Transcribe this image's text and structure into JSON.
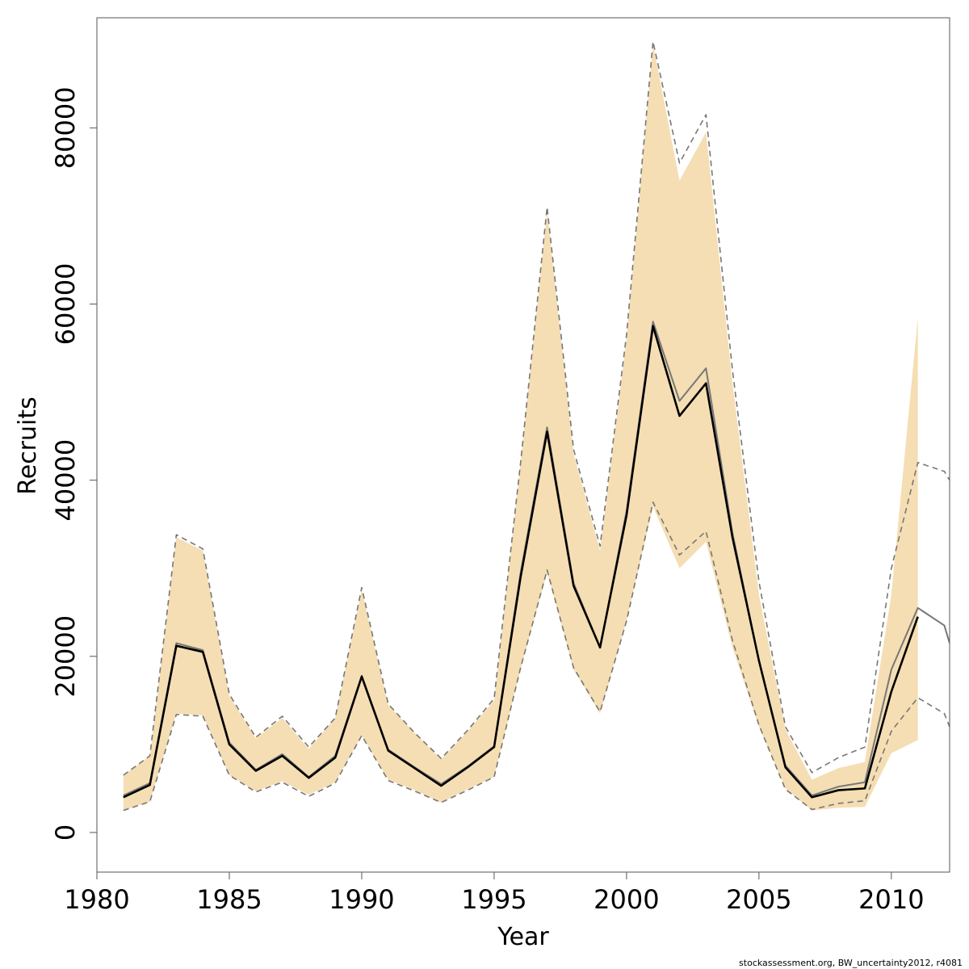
{
  "chart_data": {
    "type": "line",
    "xlabel": "Year",
    "ylabel": "Recruits",
    "xlim": [
      1980,
      2012.2
    ],
    "ylim": [
      -4500,
      92500
    ],
    "x_ticks": [
      1980,
      1985,
      1990,
      1995,
      2000,
      2005,
      2010
    ],
    "x_tick_labels": [
      "1980",
      "1985",
      "1990",
      "1995",
      "2000",
      "2005",
      "2010"
    ],
    "y_ticks": [
      0,
      20000,
      40000,
      60000,
      80000
    ],
    "y_tick_labels": [
      "0",
      "20000",
      "40000",
      "60000",
      "80000"
    ],
    "grid": false,
    "series": [
      {
        "role": "interval-band",
        "color": "#f5deb3",
        "x": [
          1981,
          1982,
          1983,
          1984,
          1985,
          1986,
          1987,
          1988,
          1989,
          1990,
          1991,
          1992,
          1993,
          1994,
          1995,
          1996,
          1997,
          1998,
          1999,
          2000,
          2001,
          2002,
          2003,
          2004,
          2005,
          2006,
          2007,
          2008,
          2009,
          2010,
          2011
        ],
        "upper": [
          6500,
          8700,
          33500,
          32000,
          15500,
          10700,
          13000,
          9500,
          13000,
          27500,
          14500,
          11300,
          8300,
          11500,
          15000,
          42000,
          70500,
          43000,
          32000,
          56000,
          89500,
          74000,
          79500,
          51000,
          27000,
          11700,
          6000,
          7300,
          8000,
          27000,
          58500
        ],
        "lower": [
          2500,
          3500,
          13500,
          13300,
          6500,
          4700,
          5800,
          4300,
          5700,
          11000,
          6000,
          4800,
          3400,
          4900,
          6300,
          18500,
          29500,
          18500,
          13500,
          24000,
          37000,
          30000,
          33000,
          21000,
          12000,
          5000,
          2500,
          2800,
          2900,
          9000,
          10500
        ]
      },
      {
        "role": "estimate-alt",
        "color": "#777777",
        "x": [
          1981,
          1982,
          1983,
          1984,
          1985,
          1986,
          1987,
          1988,
          1989,
          1990,
          1991,
          1992,
          1993,
          1994,
          1995,
          1996,
          1997,
          1998,
          1999,
          2000,
          2001,
          2002,
          2003,
          2004,
          2005,
          2006,
          2007,
          2008,
          2009,
          2010,
          2011,
          2012,
          2012.2
        ],
        "values": [
          4200,
          5600,
          21500,
          20700,
          10200,
          7100,
          8900,
          6300,
          8700,
          17800,
          9400,
          7400,
          5500,
          7500,
          9800,
          29500,
          46000,
          28300,
          21000,
          36500,
          58000,
          49000,
          52700,
          34000,
          19500,
          7600,
          4200,
          5200,
          5700,
          18500,
          25500,
          23500,
          21500
        ]
      },
      {
        "role": "interval-upper",
        "color": "#777777",
        "x": [
          1981,
          1982,
          1983,
          1984,
          1985,
          1986,
          1987,
          1988,
          1989,
          1990,
          1991,
          1992,
          1993,
          1994,
          1995,
          1996,
          1997,
          1998,
          1999,
          2000,
          2001,
          2002,
          2003,
          2004,
          2005,
          2006,
          2007,
          2008,
          2009,
          2010,
          2011,
          2012,
          2012.2
        ],
        "values": [
          6500,
          8700,
          33800,
          32200,
          15700,
          10800,
          13200,
          9700,
          13000,
          27800,
          14600,
          11300,
          8400,
          11600,
          15200,
          42000,
          71000,
          43500,
          32500,
          56500,
          89800,
          76000,
          81500,
          52500,
          28500,
          12000,
          6800,
          8500,
          9700,
          30000,
          42000,
          41000,
          40000
        ]
      },
      {
        "role": "interval-lower",
        "color": "#777777",
        "x": [
          1981,
          1982,
          1983,
          1984,
          1985,
          1986,
          1987,
          1988,
          1989,
          1990,
          1991,
          1992,
          1993,
          1994,
          1995,
          1996,
          1997,
          1998,
          1999,
          2000,
          2001,
          2002,
          2003,
          2004,
          2005,
          2006,
          2007,
          2008,
          2009,
          2010,
          2011,
          2012,
          2012.2
        ],
        "values": [
          2500,
          3500,
          13400,
          13200,
          6500,
          4600,
          5700,
          4100,
          5600,
          11000,
          5900,
          4700,
          3400,
          4800,
          6300,
          18700,
          29800,
          18700,
          13700,
          24000,
          37500,
          31500,
          34200,
          21800,
          12200,
          4900,
          2600,
          3300,
          3600,
          11500,
          15300,
          13500,
          12000
        ]
      },
      {
        "role": "estimate",
        "color": "#000000",
        "x": [
          1981,
          1982,
          1983,
          1984,
          1985,
          1986,
          1987,
          1988,
          1989,
          1990,
          1991,
          1992,
          1993,
          1994,
          1995,
          1996,
          1997,
          1998,
          1999,
          2000,
          2001,
          2002,
          2003,
          2004,
          2005,
          2006,
          2007,
          2008,
          2009,
          2010,
          2011
        ],
        "values": [
          4000,
          5400,
          21200,
          20500,
          10000,
          7000,
          8700,
          6200,
          8500,
          17700,
          9300,
          7300,
          5300,
          7400,
          9700,
          29000,
          45500,
          28000,
          21000,
          36000,
          57500,
          47300,
          51000,
          33500,
          19500,
          7400,
          4000,
          4800,
          5000,
          16000,
          24500
        ]
      }
    ]
  },
  "footer": "stockassessment.org, BW_uncertainty2012, r4081"
}
